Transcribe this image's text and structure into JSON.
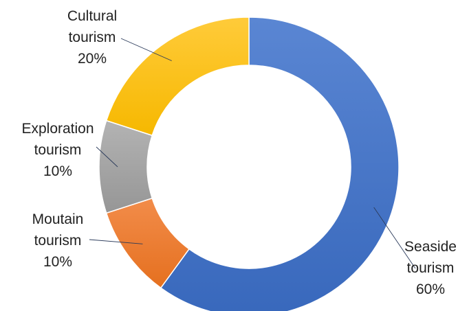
{
  "chart_data": {
    "type": "pie",
    "variant": "donut",
    "title": "",
    "slices": [
      {
        "label": "Seaside tourism",
        "label_lines": [
          "Seaside",
          "tourism",
          "60%"
        ],
        "value": 60,
        "color": "#4472C4"
      },
      {
        "label": "Moutain tourism",
        "label_lines": [
          "Moutain",
          "tourism",
          "10%"
        ],
        "value": 10,
        "color": "#ED7D31"
      },
      {
        "label": "Exploration tourism",
        "label_lines": [
          "Exploration",
          "tourism",
          "10%"
        ],
        "value": 10,
        "color": "#A5A5A5"
      },
      {
        "label": "Cultural tourism",
        "label_lines": [
          "Cultural",
          "tourism",
          "20%"
        ],
        "value": 20,
        "color": "#FFC000"
      }
    ],
    "legend": "none"
  }
}
